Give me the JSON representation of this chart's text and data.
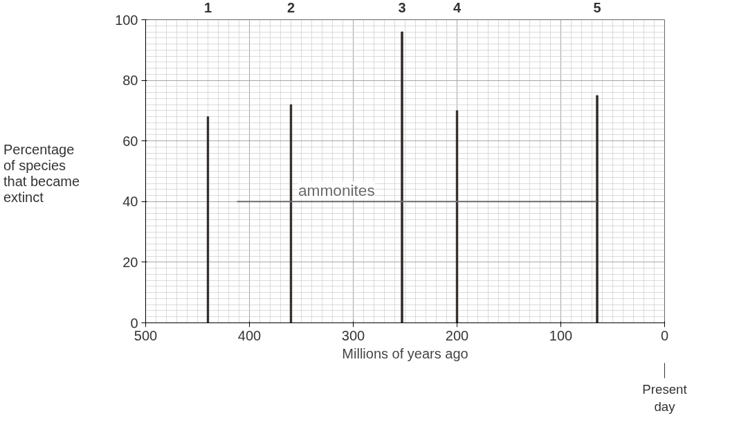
{
  "chart_data": {
    "type": "bar",
    "xlabel": "Millions of years ago",
    "ylabel": "Percentage of species that became extinct",
    "xlim": [
      500,
      0
    ],
    "ylim": [
      0,
      100
    ],
    "xticks": [
      500,
      400,
      300,
      200,
      100,
      0
    ],
    "yticks": [
      0,
      20,
      40,
      60,
      80,
      100
    ],
    "grid": true,
    "series": [
      {
        "color": "#2f2a28",
        "x": [
          440,
          360,
          253,
          200,
          65
        ],
        "values": [
          68,
          72,
          96,
          70,
          75
        ]
      },
      {
        "type": "line",
        "name": "ammonites",
        "color": "#6b6b6b",
        "x": [
          412,
          65
        ],
        "values": [
          40,
          40
        ]
      }
    ],
    "annotations": [
      "1",
      "2",
      "3",
      "4",
      "5",
      "Present day"
    ]
  }
}
